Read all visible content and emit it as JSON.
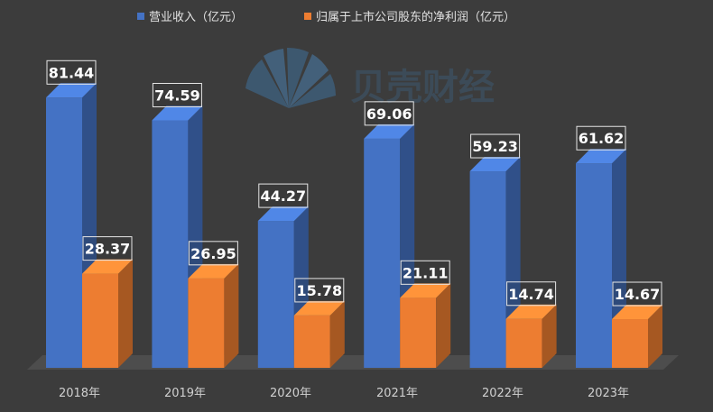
{
  "chart_data": {
    "type": "bar",
    "style": "3d-clustered-column",
    "categories": [
      "2018年",
      "2019年",
      "2020年",
      "2021年",
      "2022年",
      "2023年"
    ],
    "series": [
      {
        "name": "营业收入（亿元）",
        "color": "#4472c4",
        "values": [
          81.44,
          74.59,
          44.27,
          69.06,
          59.23,
          61.62
        ]
      },
      {
        "name": "归属于上市公司股东的净利润（亿元）",
        "color": "#ed7d31",
        "values": [
          28.37,
          26.95,
          15.78,
          21.11,
          14.74,
          14.67
        ]
      }
    ],
    "ylim": [
      0,
      85
    ],
    "grid": false,
    "legend_position": "top",
    "data_labels": true,
    "background": "#3c3c3c"
  },
  "watermark": {
    "text": "贝壳财经",
    "icon": "shell-icon",
    "color": "#3f6f9a"
  }
}
